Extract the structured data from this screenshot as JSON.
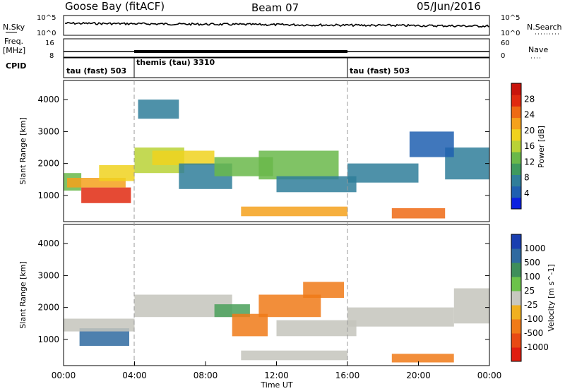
{
  "header": {
    "station": "Goose Bay (fitACF)",
    "beam": "Beam 07",
    "date": "05/Jun/2016"
  },
  "summary": {
    "nsky_label": "N.Sky",
    "nsearch_label": "N.Search",
    "nsky_ticks": [
      "10^5",
      "10^0"
    ],
    "nsky_right_ticks": [
      "10^5",
      "10^0"
    ],
    "freq_label": "Freq.",
    "freq_unit": "[MHz]",
    "freq_ticks": [
      "16",
      "8"
    ],
    "nave_label": "Nave",
    "nave_ticks": [
      "60",
      "0"
    ],
    "cpid_label": "CPID",
    "cpid_segments": [
      {
        "label": "tau (fast) 503",
        "start_h": 0,
        "end_h": 4
      },
      {
        "label": "themis (tau) 3310",
        "start_h": 4,
        "end_h": 16
      },
      {
        "label": "tau (fast) 503",
        "start_h": 16,
        "end_h": 24
      }
    ]
  },
  "axes": {
    "x_label": "Time UT",
    "x_ticks": [
      "00:00",
      "04:00",
      "08:00",
      "12:00",
      "16:00",
      "20:00",
      "00:00"
    ],
    "y_label": "Slant Range [km]",
    "y_ticks": [
      "1000",
      "2000",
      "3000",
      "4000"
    ]
  },
  "power_colorbar": {
    "label": "Power [dB]",
    "ticks": [
      "4",
      "8",
      "12",
      "16",
      "20",
      "24",
      "28"
    ],
    "colors": [
      "#0b1fe0",
      "#1f5fb0",
      "#2f7e9a",
      "#3f9a5e",
      "#6ab84a",
      "#b9d236",
      "#f0d21e",
      "#f5a11c",
      "#ee6a14",
      "#e02a10",
      "#c8140c"
    ]
  },
  "velocity_colorbar": {
    "label": "Velocity [m s^-1]",
    "ticks": [
      "1000",
      "500",
      "100",
      "25",
      "-25",
      "-100",
      "-500",
      "-1000"
    ],
    "colors": [
      "#1a3fb0",
      "#2f6aa0",
      "#3e8e5a",
      "#6cc24a",
      "#c8c8c0",
      "#f0b020",
      "#f07a18",
      "#e84a14",
      "#e01e10"
    ]
  },
  "chart_data": [
    {
      "type": "heatmap",
      "title": "Power",
      "xlabel": "Time UT",
      "ylabel": "Slant Range [km]",
      "xlim": [
        0,
        24
      ],
      "ylim": [
        180,
        4600
      ],
      "colorbar": {
        "label": "Power [dB]",
        "range": [
          0,
          32
        ]
      },
      "regions": [
        {
          "t0": 0.0,
          "t1": 1.0,
          "r0": 1150,
          "r1": 1700,
          "value": 14
        },
        {
          "t0": 1.0,
          "t1": 3.8,
          "r0": 760,
          "r1": 1250,
          "value": 28
        },
        {
          "t0": 0.2,
          "t1": 3.5,
          "r0": 1250,
          "r1": 1550,
          "value": 22
        },
        {
          "t0": 2.0,
          "t1": 4.0,
          "r0": 1450,
          "r1": 1950,
          "value": 18
        },
        {
          "t0": 4.0,
          "t1": 6.8,
          "r0": 1700,
          "r1": 2500,
          "value": 16
        },
        {
          "t0": 5.0,
          "t1": 8.5,
          "r0": 1950,
          "r1": 2400,
          "value": 20
        },
        {
          "t0": 4.2,
          "t1": 6.5,
          "r0": 3400,
          "r1": 4000,
          "value": 6
        },
        {
          "t0": 6.5,
          "t1": 9.5,
          "r0": 1200,
          "r1": 2000,
          "value": 8
        },
        {
          "t0": 8.5,
          "t1": 11.8,
          "r0": 1600,
          "r1": 2200,
          "value": 14
        },
        {
          "t0": 11.0,
          "t1": 15.5,
          "r0": 1500,
          "r1": 2400,
          "value": 12
        },
        {
          "t0": 10.0,
          "t1": 16.0,
          "r0": 350,
          "r1": 650,
          "value": 22
        },
        {
          "t0": 12.0,
          "t1": 16.5,
          "r0": 1100,
          "r1": 1600,
          "value": 6
        },
        {
          "t0": 16.0,
          "t1": 20.0,
          "r0": 1400,
          "r1": 2000,
          "value": 8
        },
        {
          "t0": 18.5,
          "t1": 21.5,
          "r0": 280,
          "r1": 600,
          "value": 26
        },
        {
          "t0": 21.5,
          "t1": 24.0,
          "r0": 1500,
          "r1": 2500,
          "value": 7
        },
        {
          "t0": 19.5,
          "t1": 22.0,
          "r0": 2200,
          "r1": 3000,
          "value": 5
        }
      ]
    },
    {
      "type": "heatmap",
      "title": "Velocity",
      "xlabel": "Time UT",
      "ylabel": "Slant Range [km]",
      "xlim": [
        0,
        24
      ],
      "ylim": [
        180,
        4600
      ],
      "colorbar": {
        "label": "Velocity [m s^-1]",
        "range": [
          -1000,
          1000
        ]
      },
      "regions": [
        {
          "t0": 0.9,
          "t1": 3.7,
          "r0": 800,
          "r1": 1350,
          "value": 150
        },
        {
          "t0": 0.0,
          "t1": 4.0,
          "r0": 1250,
          "r1": 1650,
          "value": 0
        },
        {
          "t0": 4.0,
          "t1": 9.5,
          "r0": 1700,
          "r1": 2400,
          "value": 0
        },
        {
          "t0": 8.5,
          "t1": 10.5,
          "r0": 1700,
          "r1": 2100,
          "value": 60
        },
        {
          "t0": 9.5,
          "t1": 11.5,
          "r0": 1100,
          "r1": 1800,
          "value": -500
        },
        {
          "t0": 11.0,
          "t1": 14.5,
          "r0": 1700,
          "r1": 2400,
          "value": -300
        },
        {
          "t0": 13.5,
          "t1": 15.8,
          "r0": 2300,
          "r1": 2800,
          "value": -250
        },
        {
          "t0": 12.0,
          "t1": 16.5,
          "r0": 1100,
          "r1": 1600,
          "value": 0
        },
        {
          "t0": 16.0,
          "t1": 22.0,
          "r0": 1400,
          "r1": 2000,
          "value": 0
        },
        {
          "t0": 18.5,
          "t1": 22.0,
          "r0": 280,
          "r1": 550,
          "value": -150
        },
        {
          "t0": 10.0,
          "t1": 16.0,
          "r0": 350,
          "r1": 650,
          "value": 0
        },
        {
          "t0": 22.0,
          "t1": 24.0,
          "r0": 1500,
          "r1": 2600,
          "value": 0
        }
      ]
    }
  ]
}
